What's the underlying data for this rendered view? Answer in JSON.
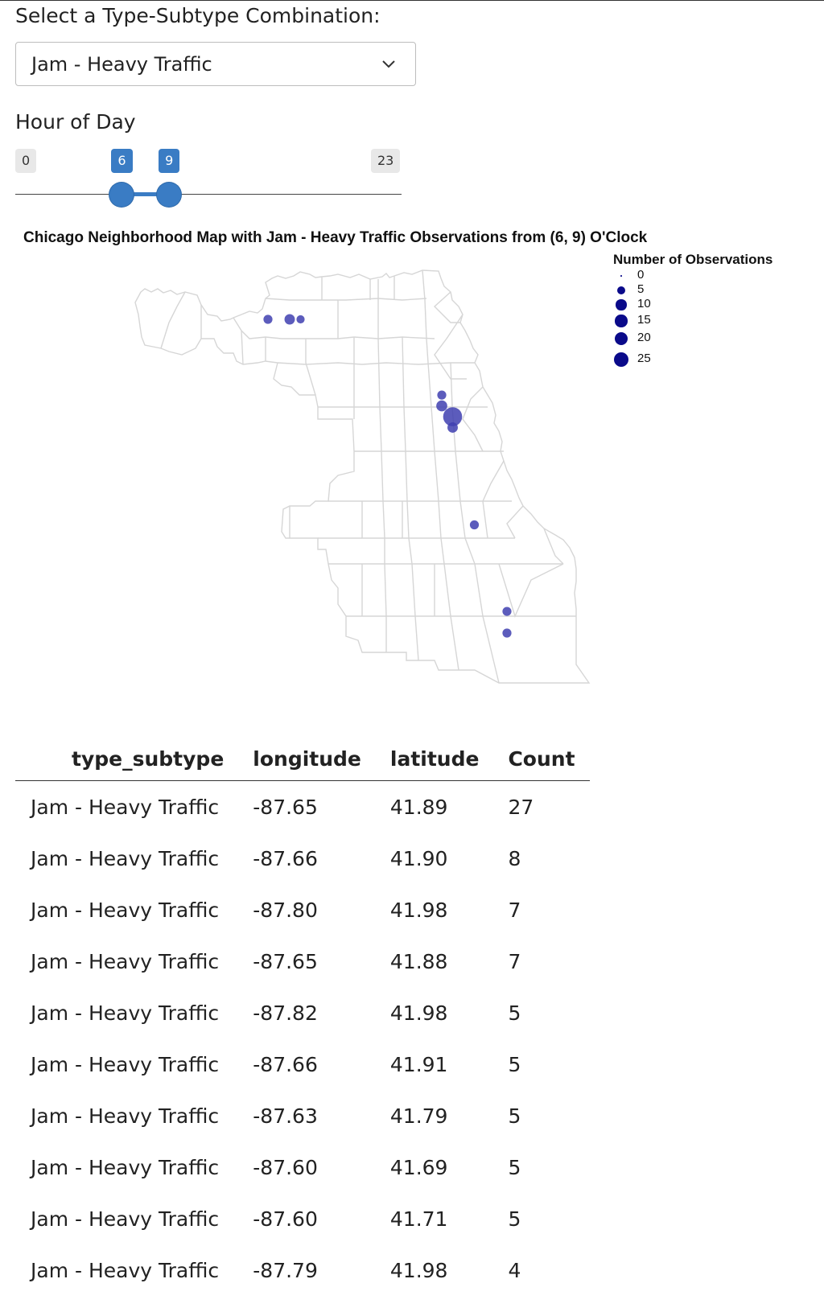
{
  "select": {
    "label": "Select a Type-Subtype Combination:",
    "value": "Jam - Heavy Traffic",
    "icon": "chevron-down-icon"
  },
  "slider": {
    "label": "Hour of Day",
    "min": 0,
    "max": 23,
    "low": 6,
    "high": 9,
    "min_label": "0",
    "max_label": "23",
    "low_label": "6",
    "high_label": "9",
    "accent": "#3a7cc4"
  },
  "chart_data": {
    "type": "scatter",
    "title": "Chicago Neighborhood Map with Jam - Heavy Traffic Observations from (6, 9) O'Clock",
    "legend_title": "Number of Observations",
    "legend_placement": "top-right",
    "size_legend": [
      "0",
      "5",
      "10",
      "15",
      "20",
      "25"
    ],
    "points": [
      {
        "longitude": -87.65,
        "latitude": 41.89,
        "count": 27
      },
      {
        "longitude": -87.66,
        "latitude": 41.9,
        "count": 8
      },
      {
        "longitude": -87.8,
        "latitude": 41.98,
        "count": 7
      },
      {
        "longitude": -87.65,
        "latitude": 41.88,
        "count": 7
      },
      {
        "longitude": -87.82,
        "latitude": 41.98,
        "count": 5
      },
      {
        "longitude": -87.66,
        "latitude": 41.91,
        "count": 5
      },
      {
        "longitude": -87.63,
        "latitude": 41.79,
        "count": 5
      },
      {
        "longitude": -87.6,
        "latitude": 41.69,
        "count": 5
      },
      {
        "longitude": -87.6,
        "latitude": 41.71,
        "count": 5
      },
      {
        "longitude": -87.79,
        "latitude": 41.98,
        "count": 4
      }
    ],
    "point_color": "#3f3fb0",
    "boundary_color": "#d6d6d6"
  },
  "table": {
    "columns": [
      "type_subtype",
      "longitude",
      "latitude",
      "Count"
    ],
    "rows": [
      [
        "Jam - Heavy Traffic",
        "-87.65",
        "41.89",
        "27"
      ],
      [
        "Jam - Heavy Traffic",
        "-87.66",
        "41.90",
        "8"
      ],
      [
        "Jam - Heavy Traffic",
        "-87.80",
        "41.98",
        "7"
      ],
      [
        "Jam - Heavy Traffic",
        "-87.65",
        "41.88",
        "7"
      ],
      [
        "Jam - Heavy Traffic",
        "-87.82",
        "41.98",
        "5"
      ],
      [
        "Jam - Heavy Traffic",
        "-87.66",
        "41.91",
        "5"
      ],
      [
        "Jam - Heavy Traffic",
        "-87.63",
        "41.79",
        "5"
      ],
      [
        "Jam - Heavy Traffic",
        "-87.60",
        "41.69",
        "5"
      ],
      [
        "Jam - Heavy Traffic",
        "-87.60",
        "41.71",
        "5"
      ],
      [
        "Jam - Heavy Traffic",
        "-87.79",
        "41.98",
        "4"
      ]
    ]
  }
}
